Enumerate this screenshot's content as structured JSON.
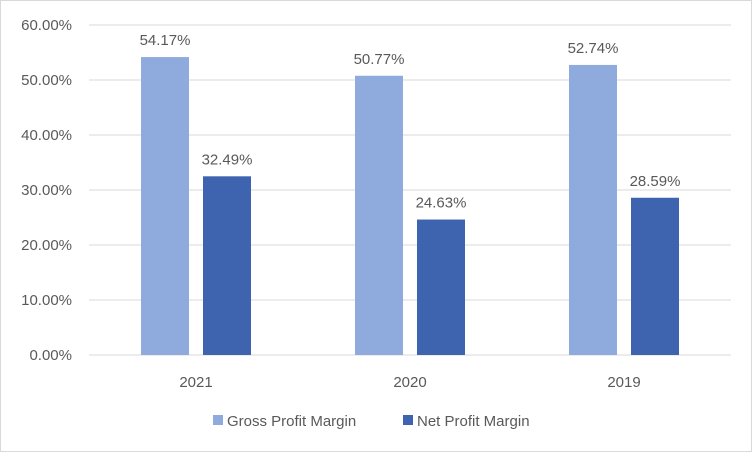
{
  "chart_data": {
    "type": "bar",
    "categories": [
      "2021",
      "2020",
      "2019"
    ],
    "series": [
      {
        "name": "Gross Profit Margin",
        "values": [
          54.17,
          50.77,
          52.74
        ],
        "color": "#8faadc"
      },
      {
        "name": "Net Profit Margin",
        "values": [
          32.49,
          24.63,
          28.59
        ],
        "color": "#3e64af"
      }
    ],
    "value_labels": [
      [
        "54.17%",
        "50.77%",
        "52.74%"
      ],
      [
        "32.49%",
        "24.63%",
        "28.59%"
      ]
    ],
    "y_ticks": [
      "0.00%",
      "10.00%",
      "20.00%",
      "30.00%",
      "40.00%",
      "50.00%",
      "60.00%"
    ],
    "ylim": [
      0,
      60
    ],
    "y_tick_step": 10,
    "grid": true,
    "legend_position": "bottom",
    "title": "",
    "xlabel": "",
    "ylabel": "",
    "colors": {
      "gridline": "#d9d9d9",
      "text": "#595959",
      "axis": "#d9d9d9"
    }
  }
}
